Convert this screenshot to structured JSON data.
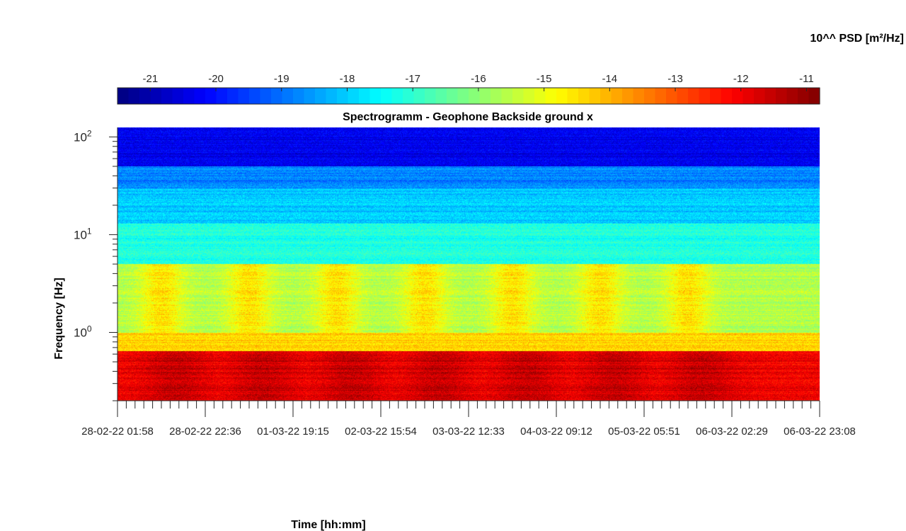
{
  "chart_data": {
    "type": "heatmap",
    "title": "Spectrogramm - Geophone Backside ground x",
    "xlabel": "Time [hh:mm]",
    "ylabel": "Frequency [Hz]",
    "colorbar_label": "10^^ PSD [m²/Hz]",
    "colorbar_range": [
      -21.5,
      -10.8
    ],
    "colorbar_ticks": [
      "-21",
      "-20",
      "-19",
      "-18",
      "-17",
      "-16",
      "-15",
      "-14",
      "-13",
      "-12",
      "-11"
    ],
    "colormap": "jet",
    "y_scale": "log",
    "y_range_hz": [
      0.2,
      125
    ],
    "y_tick_exponents": [
      "2",
      "1",
      "0"
    ],
    "y_tick_base": "10",
    "x_tick_labels": [
      "28-02-22 01:58",
      "28-02-22 22:36",
      "01-03-22 19:15",
      "02-03-22 15:54",
      "03-03-22 12:33",
      "04-03-22 09:12",
      "05-03-22 05:51",
      "06-03-22 02:29",
      "06-03-22 23:08"
    ],
    "band_levels": [
      {
        "freq_hz_from": 50,
        "freq_hz_to": 125,
        "log_psd": -20.3
      },
      {
        "freq_hz_from": 30,
        "freq_hz_to": 50,
        "log_psd": -18.8
      },
      {
        "freq_hz_from": 13,
        "freq_hz_to": 30,
        "log_psd": -18.0
      },
      {
        "freq_hz_from": 5,
        "freq_hz_to": 13,
        "log_psd": -17.2
      },
      {
        "freq_hz_from": 1,
        "freq_hz_to": 5,
        "log_psd": -15.6
      },
      {
        "freq_hz_from": 0.65,
        "freq_hz_to": 1,
        "log_psd": -14.3
      },
      {
        "freq_hz_from": 0.2,
        "freq_hz_to": 0.65,
        "log_psd": -12.0
      }
    ],
    "daytime_bursts_at_x_tick": [
      0.5,
      1.5,
      2.5,
      3.5,
      4.5,
      5.5,
      6.5
    ]
  }
}
